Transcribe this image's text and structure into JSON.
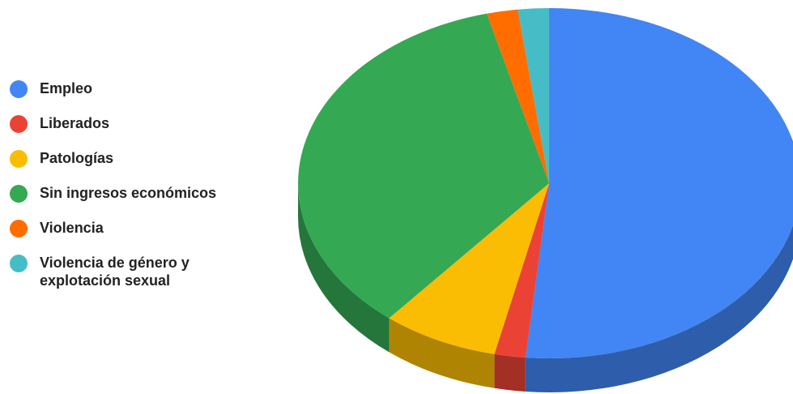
{
  "chart_data": {
    "type": "pie",
    "categories": [
      "Empleo",
      "Liberados",
      "Patologías",
      "Sin ingresos económicos",
      "Violencia",
      "Violencia de género y explotación sexual"
    ],
    "legend_labels": [
      "Empleo",
      "Liberados",
      "Patologías",
      "Sin ingresos económicos",
      "Violencia",
      "Violencia de género y\nexplotación sexual"
    ],
    "values": [
      51.5,
      2.0,
      7.5,
      35.0,
      2.0,
      2.0
    ],
    "colors": [
      "#4285f4",
      "#ea4335",
      "#fbbc04",
      "#34a853",
      "#ff6d01",
      "#46bdc6"
    ],
    "legend_position": "left",
    "style": "3d"
  }
}
